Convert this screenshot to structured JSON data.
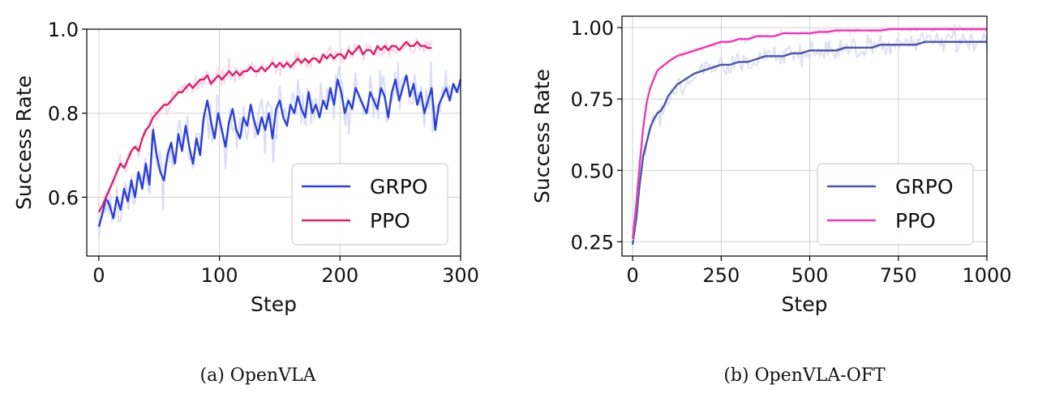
{
  "chart_data": [
    {
      "type": "line",
      "caption": "(a) OpenVLA",
      "xlabel": "Step",
      "ylabel": "Success Rate",
      "xlim": [
        -10,
        300
      ],
      "ylim": [
        0.46,
        1.0
      ],
      "xticks": [
        0,
        100,
        200,
        300
      ],
      "xtick_labels": [
        "0",
        "100",
        "200",
        "300"
      ],
      "yticks": [
        0.6,
        0.8,
        1.0
      ],
      "ytick_labels": [
        "0.6",
        "0.8",
        "1.0"
      ],
      "grid": true,
      "legend_position": "lower-right",
      "series": [
        {
          "name": "GRPO",
          "color": "#2b3fd6",
          "noise": 0.045,
          "x": [
            0,
            3,
            6,
            9,
            12,
            15,
            18,
            21,
            24,
            27,
            30,
            33,
            36,
            39,
            42,
            45,
            48,
            51,
            54,
            57,
            60,
            63,
            66,
            69,
            72,
            75,
            78,
            81,
            84,
            87,
            90,
            93,
            96,
            99,
            102,
            105,
            108,
            111,
            114,
            117,
            120,
            123,
            126,
            129,
            132,
            135,
            138,
            141,
            144,
            147,
            150,
            153,
            156,
            159,
            162,
            165,
            168,
            171,
            174,
            177,
            180,
            183,
            186,
            189,
            192,
            195,
            198,
            201,
            204,
            207,
            210,
            213,
            216,
            219,
            222,
            225,
            228,
            231,
            234,
            237,
            240,
            243,
            246,
            249,
            252,
            255,
            258,
            261,
            264,
            267,
            270,
            273,
            276,
            279,
            282,
            285,
            288,
            291,
            294,
            297,
            300
          ],
          "values": [
            0.53,
            0.56,
            0.6,
            0.58,
            0.55,
            0.6,
            0.57,
            0.62,
            0.59,
            0.64,
            0.6,
            0.66,
            0.62,
            0.68,
            0.63,
            0.76,
            0.7,
            0.66,
            0.64,
            0.7,
            0.73,
            0.68,
            0.75,
            0.71,
            0.77,
            0.72,
            0.68,
            0.74,
            0.7,
            0.79,
            0.83,
            0.78,
            0.74,
            0.8,
            0.76,
            0.72,
            0.78,
            0.81,
            0.76,
            0.74,
            0.79,
            0.77,
            0.82,
            0.78,
            0.75,
            0.79,
            0.76,
            0.8,
            0.74,
            0.81,
            0.83,
            0.79,
            0.77,
            0.82,
            0.8,
            0.84,
            0.81,
            0.79,
            0.85,
            0.8,
            0.82,
            0.79,
            0.83,
            0.81,
            0.86,
            0.82,
            0.88,
            0.85,
            0.8,
            0.83,
            0.81,
            0.86,
            0.84,
            0.82,
            0.8,
            0.85,
            0.83,
            0.81,
            0.86,
            0.84,
            0.79,
            0.85,
            0.88,
            0.83,
            0.86,
            0.89,
            0.84,
            0.87,
            0.82,
            0.85,
            0.8,
            0.83,
            0.86,
            0.76,
            0.82,
            0.84,
            0.86,
            0.83,
            0.87,
            0.85,
            0.88
          ]
        },
        {
          "name": "PPO",
          "color": "#d6246e",
          "noise": 0.018,
          "x": [
            0,
            3,
            6,
            9,
            12,
            15,
            18,
            21,
            24,
            27,
            30,
            33,
            36,
            39,
            42,
            45,
            48,
            51,
            54,
            57,
            60,
            63,
            66,
            69,
            72,
            75,
            78,
            81,
            84,
            87,
            90,
            93,
            96,
            99,
            102,
            105,
            108,
            111,
            114,
            117,
            120,
            123,
            126,
            129,
            132,
            135,
            138,
            141,
            144,
            147,
            150,
            153,
            156,
            159,
            162,
            165,
            168,
            171,
            174,
            177,
            180,
            183,
            186,
            189,
            192,
            195,
            198,
            201,
            204,
            207,
            210,
            213,
            216,
            219,
            222,
            225,
            228,
            231,
            234,
            237,
            240,
            243,
            246,
            249,
            252,
            255,
            258,
            261,
            264,
            267,
            270,
            273,
            276
          ],
          "values": [
            0.565,
            0.58,
            0.6,
            0.62,
            0.64,
            0.66,
            0.68,
            0.67,
            0.69,
            0.71,
            0.72,
            0.71,
            0.74,
            0.76,
            0.77,
            0.79,
            0.8,
            0.81,
            0.82,
            0.82,
            0.83,
            0.84,
            0.85,
            0.85,
            0.86,
            0.87,
            0.86,
            0.87,
            0.88,
            0.88,
            0.89,
            0.87,
            0.88,
            0.89,
            0.88,
            0.89,
            0.9,
            0.89,
            0.9,
            0.89,
            0.9,
            0.9,
            0.91,
            0.9,
            0.9,
            0.91,
            0.9,
            0.91,
            0.92,
            0.91,
            0.92,
            0.91,
            0.92,
            0.91,
            0.92,
            0.93,
            0.92,
            0.93,
            0.92,
            0.93,
            0.93,
            0.92,
            0.94,
            0.93,
            0.94,
            0.93,
            0.94,
            0.94,
            0.93,
            0.95,
            0.94,
            0.95,
            0.96,
            0.94,
            0.95,
            0.95,
            0.94,
            0.96,
            0.95,
            0.96,
            0.95,
            0.96,
            0.96,
            0.95,
            0.96,
            0.97,
            0.96,
            0.96,
            0.97,
            0.96,
            0.96,
            0.955,
            0.955
          ]
        }
      ]
    },
    {
      "type": "line",
      "caption": "(b) OpenVLA-OFT",
      "xlabel": "Step",
      "ylabel": "Success Rate",
      "xlim": [
        -30,
        1000
      ],
      "ylim": [
        0.2,
        1.04
      ],
      "xticks": [
        0,
        250,
        500,
        750,
        1000
      ],
      "xtick_labels": [
        "0",
        "250",
        "500",
        "750",
        "1000"
      ],
      "yticks": [
        0.25,
        0.5,
        0.75,
        1.0
      ],
      "ytick_labels": [
        "0.25",
        "0.50",
        "0.75",
        "1.00"
      ],
      "grid": true,
      "legend_position": "lower-right",
      "series": [
        {
          "name": "GRPO",
          "color": "#4a55a8",
          "noise": 0.035,
          "x": [
            0,
            10,
            20,
            30,
            40,
            50,
            60,
            70,
            80,
            90,
            100,
            125,
            150,
            175,
            200,
            225,
            250,
            275,
            300,
            325,
            350,
            375,
            400,
            425,
            450,
            475,
            500,
            525,
            550,
            575,
            600,
            625,
            650,
            675,
            700,
            725,
            750,
            775,
            800,
            825,
            850,
            875,
            900,
            925,
            950,
            975,
            1000
          ],
          "values": [
            0.24,
            0.33,
            0.45,
            0.55,
            0.6,
            0.65,
            0.68,
            0.7,
            0.71,
            0.73,
            0.76,
            0.8,
            0.82,
            0.84,
            0.85,
            0.86,
            0.87,
            0.87,
            0.88,
            0.88,
            0.89,
            0.9,
            0.9,
            0.9,
            0.91,
            0.91,
            0.92,
            0.92,
            0.92,
            0.92,
            0.93,
            0.93,
            0.93,
            0.93,
            0.94,
            0.94,
            0.94,
            0.94,
            0.94,
            0.95,
            0.95,
            0.95,
            0.95,
            0.95,
            0.95,
            0.95,
            0.95
          ]
        },
        {
          "name": "PPO",
          "color": "#e43fb4",
          "noise": 0.008,
          "x": [
            0,
            10,
            20,
            30,
            40,
            50,
            60,
            70,
            80,
            90,
            100,
            125,
            150,
            175,
            200,
            225,
            250,
            275,
            300,
            325,
            350,
            375,
            400,
            425,
            450,
            475,
            500,
            525,
            550,
            575,
            600,
            625,
            650,
            675,
            700,
            725,
            750,
            775,
            800,
            825,
            850,
            875,
            900,
            925,
            950,
            975,
            1000
          ],
          "values": [
            0.26,
            0.38,
            0.52,
            0.65,
            0.74,
            0.79,
            0.82,
            0.85,
            0.86,
            0.87,
            0.88,
            0.9,
            0.91,
            0.92,
            0.93,
            0.94,
            0.95,
            0.95,
            0.96,
            0.96,
            0.97,
            0.97,
            0.97,
            0.98,
            0.98,
            0.98,
            0.98,
            0.985,
            0.985,
            0.99,
            0.99,
            0.99,
            0.99,
            0.99,
            0.99,
            0.995,
            0.995,
            0.995,
            0.995,
            0.995,
            0.995,
            0.995,
            0.995,
            0.995,
            0.995,
            0.995,
            0.995
          ]
        }
      ]
    }
  ]
}
